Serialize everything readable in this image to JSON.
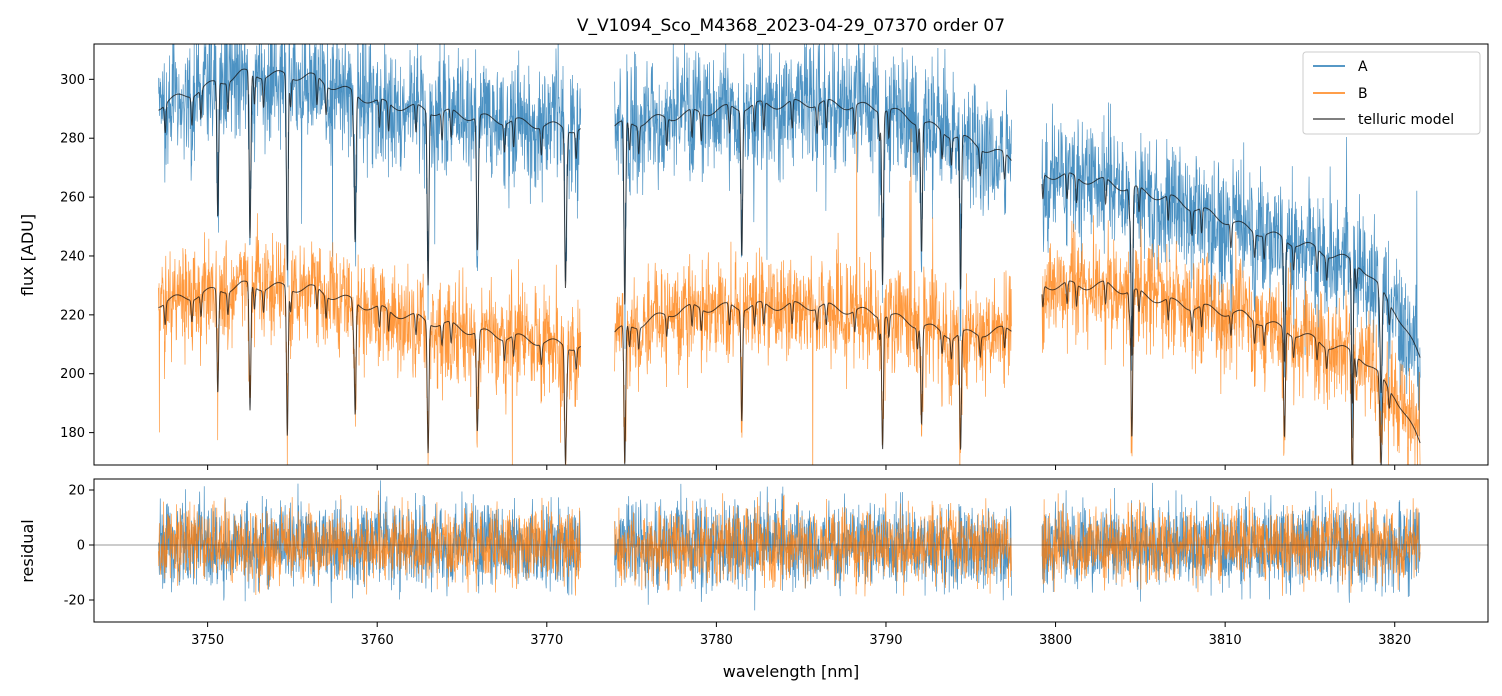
{
  "chart_data": [
    {
      "type": "line",
      "title": "V_V1094_Sco_M4368_2023-04-29_07370  order 07",
      "xlabel": "wavelength [nm]",
      "ylabel": "flux [ADU]",
      "xlim": [
        3743.3,
        3825.5
      ],
      "ylim": [
        169,
        312
      ],
      "xticks": [
        3750,
        3760,
        3770,
        3780,
        3790,
        3800,
        3810,
        3820
      ],
      "yticks": [
        180,
        200,
        220,
        240,
        260,
        280,
        300
      ],
      "segments": [
        [
          3747.1,
          3772.0
        ],
        [
          3774.0,
          3797.4
        ],
        [
          3799.2,
          3821.5
        ]
      ],
      "absorption_lines": [
        3750.6,
        3752.5,
        3754.7,
        3758.7,
        3763.0,
        3765.9,
        3771.1,
        3774.6,
        3781.5,
        3789.8,
        3792.1,
        3794.4,
        3804.5,
        3813.5,
        3817.5,
        3819.2
      ],
      "series": [
        {
          "name": "A",
          "color": "#1f77b4",
          "baseline_x": [
            3747.1,
            3752,
            3756,
            3760,
            3766,
            3772,
            3774,
            3778,
            3782,
            3786,
            3790,
            3794,
            3797.4,
            3799.2,
            3803,
            3807,
            3811,
            3815,
            3818,
            3820,
            3821.5
          ],
          "baseline_y": [
            291,
            302,
            301,
            292,
            287,
            283,
            284,
            288,
            291,
            292,
            290,
            281,
            273,
            268,
            265,
            259,
            250,
            243,
            237,
            222,
            205
          ],
          "noise": 11
        },
        {
          "name": "B",
          "color": "#ff7f0e",
          "baseline_x": [
            3747.1,
            3752,
            3756,
            3760,
            3766,
            3772,
            3774,
            3778,
            3782,
            3786,
            3790,
            3794,
            3797.4,
            3799.2,
            3803,
            3807,
            3811,
            3815,
            3818,
            3820,
            3821.5
          ],
          "baseline_y": [
            224,
            230,
            229,
            222,
            214,
            209,
            214,
            222,
            223,
            223,
            220,
            213,
            215,
            230,
            230,
            224,
            220,
            212,
            206,
            193,
            176
          ],
          "noise": 9
        },
        {
          "name": "telluric model",
          "color": "#555555"
        }
      ],
      "legend": {
        "position": "top-right",
        "entries": [
          "A",
          "B",
          "telluric model"
        ]
      }
    },
    {
      "type": "line",
      "xlabel": "wavelength [nm]",
      "ylabel": "residual",
      "xlim": [
        3743.3,
        3825.5
      ],
      "ylim": [
        -28,
        24
      ],
      "yticks": [
        -20,
        0,
        20
      ],
      "zero_line": true,
      "series": [
        {
          "name": "A",
          "color": "#1f77b4",
          "noise": 8
        },
        {
          "name": "B",
          "color": "#ff7f0e",
          "noise": 7
        }
      ]
    }
  ]
}
